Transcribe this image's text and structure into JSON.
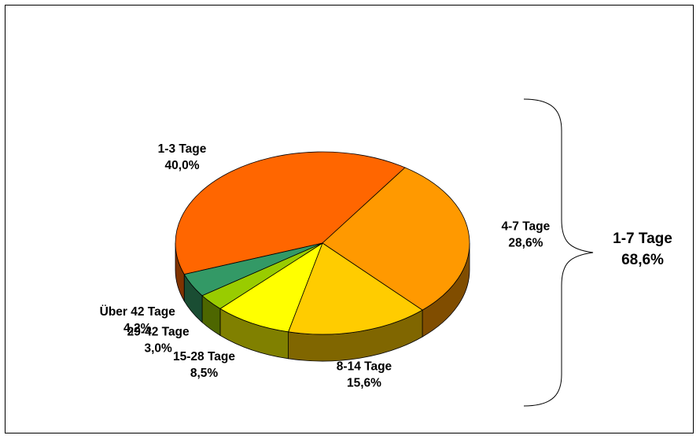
{
  "chart_data": {
    "type": "pie",
    "title": "",
    "series": [
      {
        "label": "1-3 Tage",
        "value": 40.0,
        "value_text": "40,0%",
        "color": "#ff6600"
      },
      {
        "label": "4-7 Tage",
        "value": 28.6,
        "value_text": "28,6%",
        "color": "#ff9900"
      },
      {
        "label": "8-14 Tage",
        "value": 15.6,
        "value_text": "15,6%",
        "color": "#ffcc00"
      },
      {
        "label": "15-28 Tage",
        "value": 8.5,
        "value_text": "8,5%",
        "color": "#ffff00"
      },
      {
        "label": "29-42 Tage",
        "value": 3.0,
        "value_text": "3,0%",
        "color": "#99cc00"
      },
      {
        "label": "Über 42 Tage",
        "value": 4.2,
        "value_text": "4,2%",
        "color": "#339966"
      }
    ],
    "style": "3d-tilted",
    "annotation": {
      "label": "1-7 Tage",
      "value_text": "68,6%",
      "groups": [
        "1-3 Tage",
        "4-7 Tage"
      ]
    }
  }
}
